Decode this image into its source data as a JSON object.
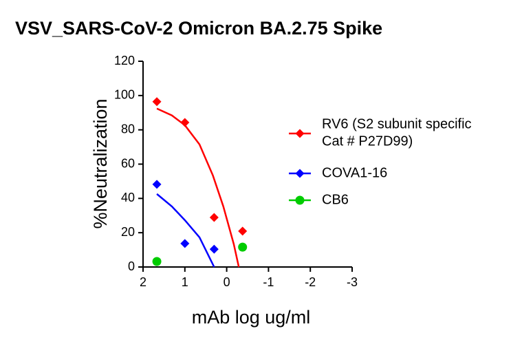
{
  "chart_data": {
    "type": "scatter",
    "title": "VSV_SARS-CoV-2 Omicron BA.2.75 Spike",
    "x_label": "mAb log ug/ml",
    "y_label": "%Neutralization",
    "xlim": [
      2,
      -3
    ],
    "xticks": [
      2,
      1,
      0,
      -1,
      -2,
      -3
    ],
    "ylim": [
      0,
      120
    ],
    "yticks": [
      0,
      20,
      40,
      60,
      80,
      100,
      120
    ],
    "series": [
      {
        "name": "RV6 (S2 subunit specific\nCat # P27D99)",
        "color": "#ff0000",
        "marker": "diamond",
        "x": [
          1.67,
          1.0,
          0.3,
          -0.38
        ],
        "values": [
          96.4,
          84.3,
          28.9,
          20.9
        ],
        "fit_x": [
          1.67,
          1.31,
          1.0,
          0.65,
          0.33,
          0.08,
          -0.17,
          -0.29
        ],
        "fit_y": [
          92.4,
          88.4,
          82.7,
          71.5,
          53.4,
          35.3,
          13.3,
          0
        ]
      },
      {
        "name": "COVA1-16",
        "color": "#0000ff",
        "marker": "diamond",
        "x": [
          1.67,
          1.0,
          0.3
        ],
        "values": [
          48.2,
          13.7,
          10.4
        ],
        "fit_x": [
          1.67,
          1.31,
          1.0,
          0.65,
          0.3
        ],
        "fit_y": [
          42.6,
          35.3,
          27.3,
          17.3,
          0
        ]
      },
      {
        "name": "CB6",
        "color": "#00cc00",
        "marker": "circle",
        "x": [
          1.67,
          -0.38
        ],
        "values": [
          3.2,
          11.6
        ]
      }
    ]
  }
}
